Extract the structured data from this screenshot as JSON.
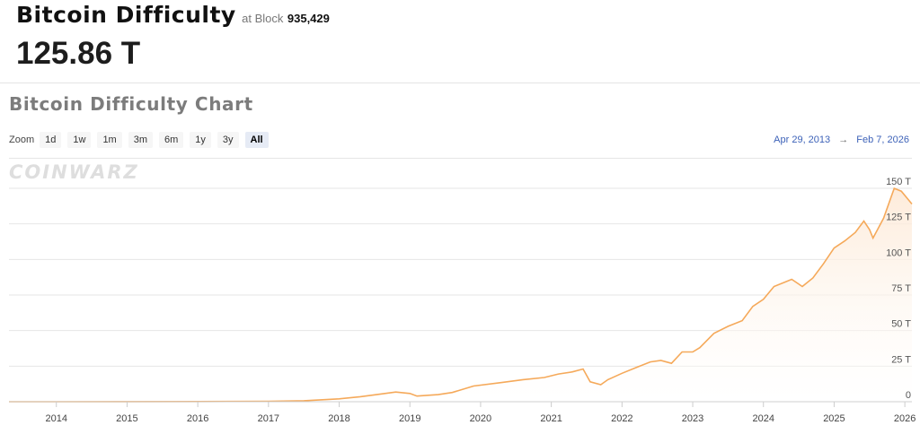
{
  "header": {
    "title": "Bitcoin Difficulty",
    "block_label": "at Block",
    "block_number": "935,429",
    "value": "125.86 T"
  },
  "chart_title": "Bitcoin Difficulty Chart",
  "zoom": {
    "label": "Zoom",
    "buttons": [
      "1d",
      "1w",
      "1m",
      "3m",
      "6m",
      "1y",
      "3y",
      "All"
    ],
    "active": "All"
  },
  "range": {
    "from": "Apr 29, 2013",
    "arrow": "→",
    "to": "Feb 7, 2026"
  },
  "watermark": "COINWARZ",
  "colors": {
    "line": "#f5a95a",
    "fill_top": "#fde9d6",
    "grid": "#e6e6e6",
    "range_text": "#3d62b8"
  },
  "chart_data": {
    "type": "area",
    "title": "",
    "xlabel": "",
    "ylabel": "",
    "xlim": [
      2013.33,
      2026.1
    ],
    "ylim": [
      0,
      150
    ],
    "x_ticks": [
      2014,
      2015,
      2016,
      2017,
      2018,
      2019,
      2020,
      2021,
      2022,
      2023,
      2024,
      2025,
      2026
    ],
    "y_ticks": [
      {
        "value": 0,
        "label": "0"
      },
      {
        "value": 25,
        "label": "25 T"
      },
      {
        "value": 50,
        "label": "50 T"
      },
      {
        "value": 75,
        "label": "75 T"
      },
      {
        "value": 100,
        "label": "100 T"
      },
      {
        "value": 125,
        "label": "125 T"
      },
      {
        "value": 150,
        "label": "150 T"
      }
    ],
    "grid": true,
    "series": [
      {
        "points": [
          [
            2013.33,
            0.0
          ],
          [
            2014.0,
            0.0
          ],
          [
            2015.0,
            0.04
          ],
          [
            2016.0,
            0.1
          ],
          [
            2017.0,
            0.3
          ],
          [
            2017.5,
            0.7
          ],
          [
            2018.0,
            2.0
          ],
          [
            2018.3,
            3.5
          ],
          [
            2018.6,
            5.5
          ],
          [
            2018.8,
            6.8
          ],
          [
            2019.0,
            5.8
          ],
          [
            2019.1,
            4.0
          ],
          [
            2019.4,
            5.0
          ],
          [
            2019.6,
            6.5
          ],
          [
            2019.9,
            11.0
          ],
          [
            2020.3,
            13.5
          ],
          [
            2020.6,
            15.5
          ],
          [
            2020.9,
            17.0
          ],
          [
            2021.1,
            19.5
          ],
          [
            2021.3,
            21.0
          ],
          [
            2021.45,
            23.0
          ],
          [
            2021.55,
            14.0
          ],
          [
            2021.7,
            12.0
          ],
          [
            2021.8,
            15.5
          ],
          [
            2022.0,
            20.0
          ],
          [
            2022.2,
            24.0
          ],
          [
            2022.4,
            28.0
          ],
          [
            2022.55,
            29.0
          ],
          [
            2022.7,
            27.0
          ],
          [
            2022.85,
            35.0
          ],
          [
            2023.0,
            35.0
          ],
          [
            2023.1,
            38.0
          ],
          [
            2023.3,
            48.0
          ],
          [
            2023.5,
            53.0
          ],
          [
            2023.7,
            57.0
          ],
          [
            2023.85,
            67.0
          ],
          [
            2024.0,
            72.0
          ],
          [
            2024.15,
            81.0
          ],
          [
            2024.3,
            84.0
          ],
          [
            2024.4,
            86.0
          ],
          [
            2024.55,
            81.0
          ],
          [
            2024.7,
            87.0
          ],
          [
            2024.85,
            97.0
          ],
          [
            2025.0,
            108.0
          ],
          [
            2025.15,
            113.0
          ],
          [
            2025.3,
            119.0
          ],
          [
            2025.42,
            127.0
          ],
          [
            2025.5,
            121.0
          ],
          [
            2025.55,
            115.0
          ],
          [
            2025.7,
            129.0
          ],
          [
            2025.85,
            150.0
          ],
          [
            2025.95,
            148.0
          ],
          [
            2026.05,
            142.0
          ],
          [
            2026.1,
            139.0
          ]
        ]
      }
    ]
  }
}
